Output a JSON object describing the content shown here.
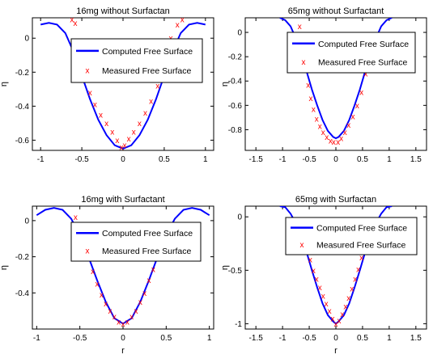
{
  "colors": {
    "computed": "#0000ff",
    "measured": "#ff0000",
    "axis": "#000000"
  },
  "chart_data": [
    {
      "type": "line",
      "title": "16mg without Surfactan",
      "xlabel": "",
      "ylabel": "η",
      "xlim": [
        -1.1,
        1.1
      ],
      "ylim": [
        -0.66,
        0.12
      ],
      "xticks": [
        -1,
        -0.5,
        0,
        0.5,
        1
      ],
      "yticks": [
        0,
        -0.2,
        -0.4,
        -0.6
      ],
      "xtick_labels": [
        "-1",
        "-0.5",
        "0",
        "0.5",
        "1"
      ],
      "ytick_labels": [
        "0",
        "-0.2",
        "-0.4",
        "-0.6"
      ],
      "legend": {
        "position": "inside-center",
        "entries": [
          "Computed Free Surface",
          "Measured Free Surface"
        ]
      },
      "series": [
        {
          "name": "Computed Free Surface",
          "style": "line",
          "x": [
            -1.0,
            -0.9,
            -0.8,
            -0.7,
            -0.6,
            -0.5,
            -0.4,
            -0.3,
            -0.2,
            -0.1,
            0,
            0.1,
            0.2,
            0.3,
            0.4,
            0.5,
            0.6,
            0.7,
            0.8,
            0.9,
            1.0
          ],
          "y": [
            0.08,
            0.09,
            0.08,
            0.03,
            -0.08,
            -0.22,
            -0.36,
            -0.48,
            -0.57,
            -0.63,
            -0.65,
            -0.63,
            -0.57,
            -0.48,
            -0.36,
            -0.22,
            -0.08,
            0.03,
            0.08,
            0.09,
            0.08
          ]
        },
        {
          "name": "Measured Free Surface",
          "style": "markers",
          "marker": "x",
          "x": [
            -0.62,
            -0.58,
            -0.52,
            -0.46,
            -0.4,
            -0.34,
            -0.27,
            -0.2,
            -0.13,
            -0.07,
            -0.02,
            0.02,
            0.07,
            0.13,
            0.2,
            0.27,
            0.34,
            0.42,
            0.5,
            0.58,
            0.66,
            0.72
          ],
          "y": [
            0.11,
            0.09,
            -0.06,
            -0.2,
            -0.32,
            -0.39,
            -0.45,
            -0.5,
            -0.55,
            -0.6,
            -0.64,
            -0.63,
            -0.59,
            -0.55,
            -0.5,
            -0.44,
            -0.37,
            -0.28,
            -0.14,
            0.0,
            0.08,
            0.11
          ]
        }
      ]
    },
    {
      "type": "line",
      "title": "65mg without Surfactant",
      "xlabel": "",
      "ylabel": "η",
      "xlim": [
        -1.7,
        1.7
      ],
      "ylim": [
        -0.97,
        0.12
      ],
      "xticks": [
        -1.5,
        -1,
        -0.5,
        0,
        0.5,
        1,
        1.5
      ],
      "yticks": [
        0,
        -0.2,
        -0.4,
        -0.6,
        -0.8
      ],
      "xtick_labels": [
        "-1.5",
        "-1",
        "-0.5",
        "0",
        "0.5",
        "1",
        "1.5"
      ],
      "ytick_labels": [
        "0",
        "-0.2",
        "-0.4",
        "-0.6",
        "-0.8"
      ],
      "legend": {
        "position": "top-center",
        "entries": [
          "Computed Free Surface",
          "Measured Free Surface"
        ]
      },
      "series": [
        {
          "name": "Computed Free Surface",
          "style": "line",
          "x": [
            -1.05,
            -0.95,
            -0.85,
            -0.75,
            -0.65,
            -0.55,
            -0.45,
            -0.35,
            -0.25,
            -0.15,
            -0.05,
            0,
            0.05,
            0.15,
            0.25,
            0.35,
            0.45,
            0.55,
            0.65,
            0.75,
            0.85,
            0.95,
            1.05
          ],
          "y": [
            0.12,
            0.1,
            0.05,
            -0.05,
            -0.18,
            -0.32,
            -0.47,
            -0.6,
            -0.72,
            -0.81,
            -0.86,
            -0.87,
            -0.86,
            -0.81,
            -0.72,
            -0.6,
            -0.47,
            -0.32,
            -0.18,
            -0.05,
            0.05,
            0.1,
            0.12
          ]
        },
        {
          "name": "Measured Free Surface",
          "style": "markers",
          "marker": "x",
          "x": [
            -0.68,
            -0.64,
            -0.6,
            -0.56,
            -0.52,
            -0.47,
            -0.42,
            -0.36,
            -0.3,
            -0.24,
            -0.17,
            -0.1,
            -0.04,
            0.04,
            0.1,
            0.17,
            0.24,
            0.32,
            0.4,
            0.48,
            0.56,
            0.62,
            0.68
          ],
          "y": [
            0.05,
            -0.05,
            -0.17,
            -0.3,
            -0.43,
            -0.54,
            -0.63,
            -0.71,
            -0.77,
            -0.82,
            -0.86,
            -0.89,
            -0.9,
            -0.9,
            -0.87,
            -0.82,
            -0.76,
            -0.69,
            -0.6,
            -0.49,
            -0.34,
            -0.2,
            -0.08
          ]
        }
      ]
    },
    {
      "type": "line",
      "title": "16mg with Surfactant",
      "xlabel": "r",
      "ylabel": "η",
      "xlim": [
        -1.05,
        1.05
      ],
      "ylim": [
        -0.6,
        0.08
      ],
      "xticks": [
        -1,
        -0.5,
        0,
        0.5,
        1
      ],
      "yticks": [
        0,
        -0.2,
        -0.4
      ],
      "xtick_labels": [
        "-1",
        "-0.5",
        "0",
        "0.5",
        "1"
      ],
      "ytick_labels": [
        "0",
        "-0.2",
        "-0.4"
      ],
      "legend": {
        "position": "inside-center",
        "entries": [
          "Computed Free Surface",
          "Measured Free Surface"
        ]
      },
      "series": [
        {
          "name": "Computed Free Surface",
          "style": "line",
          "x": [
            -1.0,
            -0.9,
            -0.8,
            -0.7,
            -0.6,
            -0.5,
            -0.4,
            -0.3,
            -0.2,
            -0.1,
            0,
            0.1,
            0.2,
            0.3,
            0.4,
            0.5,
            0.6,
            0.7,
            0.8,
            0.9,
            1.0
          ],
          "y": [
            0.03,
            0.06,
            0.07,
            0.06,
            0.01,
            -0.08,
            -0.2,
            -0.33,
            -0.45,
            -0.54,
            -0.57,
            -0.54,
            -0.45,
            -0.33,
            -0.2,
            -0.08,
            0.01,
            0.06,
            0.07,
            0.06,
            0.03
          ]
        },
        {
          "name": "Measured Free Surface",
          "style": "markers",
          "marker": "x",
          "x": [
            -0.55,
            -0.5,
            -0.45,
            -0.4,
            -0.35,
            -0.3,
            -0.25,
            -0.2,
            -0.15,
            -0.1,
            -0.05,
            0,
            0.05,
            0.1,
            0.15,
            0.2,
            0.25,
            0.3,
            0.35,
            0.4,
            0.45,
            0.5
          ],
          "y": [
            0.02,
            -0.05,
            -0.12,
            -0.2,
            -0.28,
            -0.35,
            -0.41,
            -0.46,
            -0.5,
            -0.53,
            -0.56,
            -0.57,
            -0.56,
            -0.53,
            -0.5,
            -0.45,
            -0.4,
            -0.33,
            -0.27,
            -0.19,
            -0.12,
            -0.04
          ]
        }
      ]
    },
    {
      "type": "line",
      "title": "65mg with Surfactan",
      "xlabel": "r",
      "ylabel": "η",
      "xlim": [
        -1.7,
        1.7
      ],
      "ylim": [
        -1.05,
        0.1
      ],
      "xticks": [
        -1.5,
        -1,
        -0.5,
        0,
        0.5,
        1,
        1.5
      ],
      "yticks": [
        0,
        -0.5,
        -1
      ],
      "xtick_labels": [
        "-1.5",
        "-1",
        "-0.5",
        "0",
        "0.5",
        "1",
        "1.5"
      ],
      "ytick_labels": [
        "0",
        "-0.5",
        "-1"
      ],
      "legend": {
        "position": "top-center",
        "entries": [
          "Computed Free Surface",
          "Measured Free Surface"
        ]
      },
      "series": [
        {
          "name": "Computed Free Surface",
          "style": "line",
          "x": [
            -1.05,
            -0.95,
            -0.85,
            -0.75,
            -0.65,
            -0.55,
            -0.45,
            -0.35,
            -0.25,
            -0.15,
            -0.05,
            0,
            0.05,
            0.15,
            0.25,
            0.35,
            0.45,
            0.55,
            0.65,
            0.75,
            0.85,
            0.95,
            1.05
          ],
          "y": [
            0.1,
            0.09,
            0.03,
            -0.06,
            -0.18,
            -0.33,
            -0.5,
            -0.66,
            -0.81,
            -0.92,
            -0.98,
            -1.0,
            -0.98,
            -0.92,
            -0.81,
            -0.66,
            -0.5,
            -0.33,
            -0.18,
            -0.06,
            0.03,
            0.09,
            0.1
          ]
        },
        {
          "name": "Measured Free Surface",
          "style": "markers",
          "marker": "x",
          "x": [
            -0.7,
            -0.62,
            -0.55,
            -0.48,
            -0.42,
            -0.36,
            -0.3,
            -0.24,
            -0.18,
            -0.12,
            -0.06,
            0,
            0.06,
            0.12,
            0.18,
            0.24,
            0.3,
            0.36,
            0.42,
            0.48,
            0.55,
            0.62,
            0.7
          ],
          "y": [
            -0.05,
            -0.16,
            -0.28,
            -0.4,
            -0.5,
            -0.58,
            -0.66,
            -0.74,
            -0.81,
            -0.88,
            -0.95,
            -1.0,
            -0.97,
            -0.91,
            -0.84,
            -0.76,
            -0.67,
            -0.58,
            -0.49,
            -0.38,
            -0.27,
            -0.15,
            -0.04
          ]
        }
      ]
    }
  ]
}
